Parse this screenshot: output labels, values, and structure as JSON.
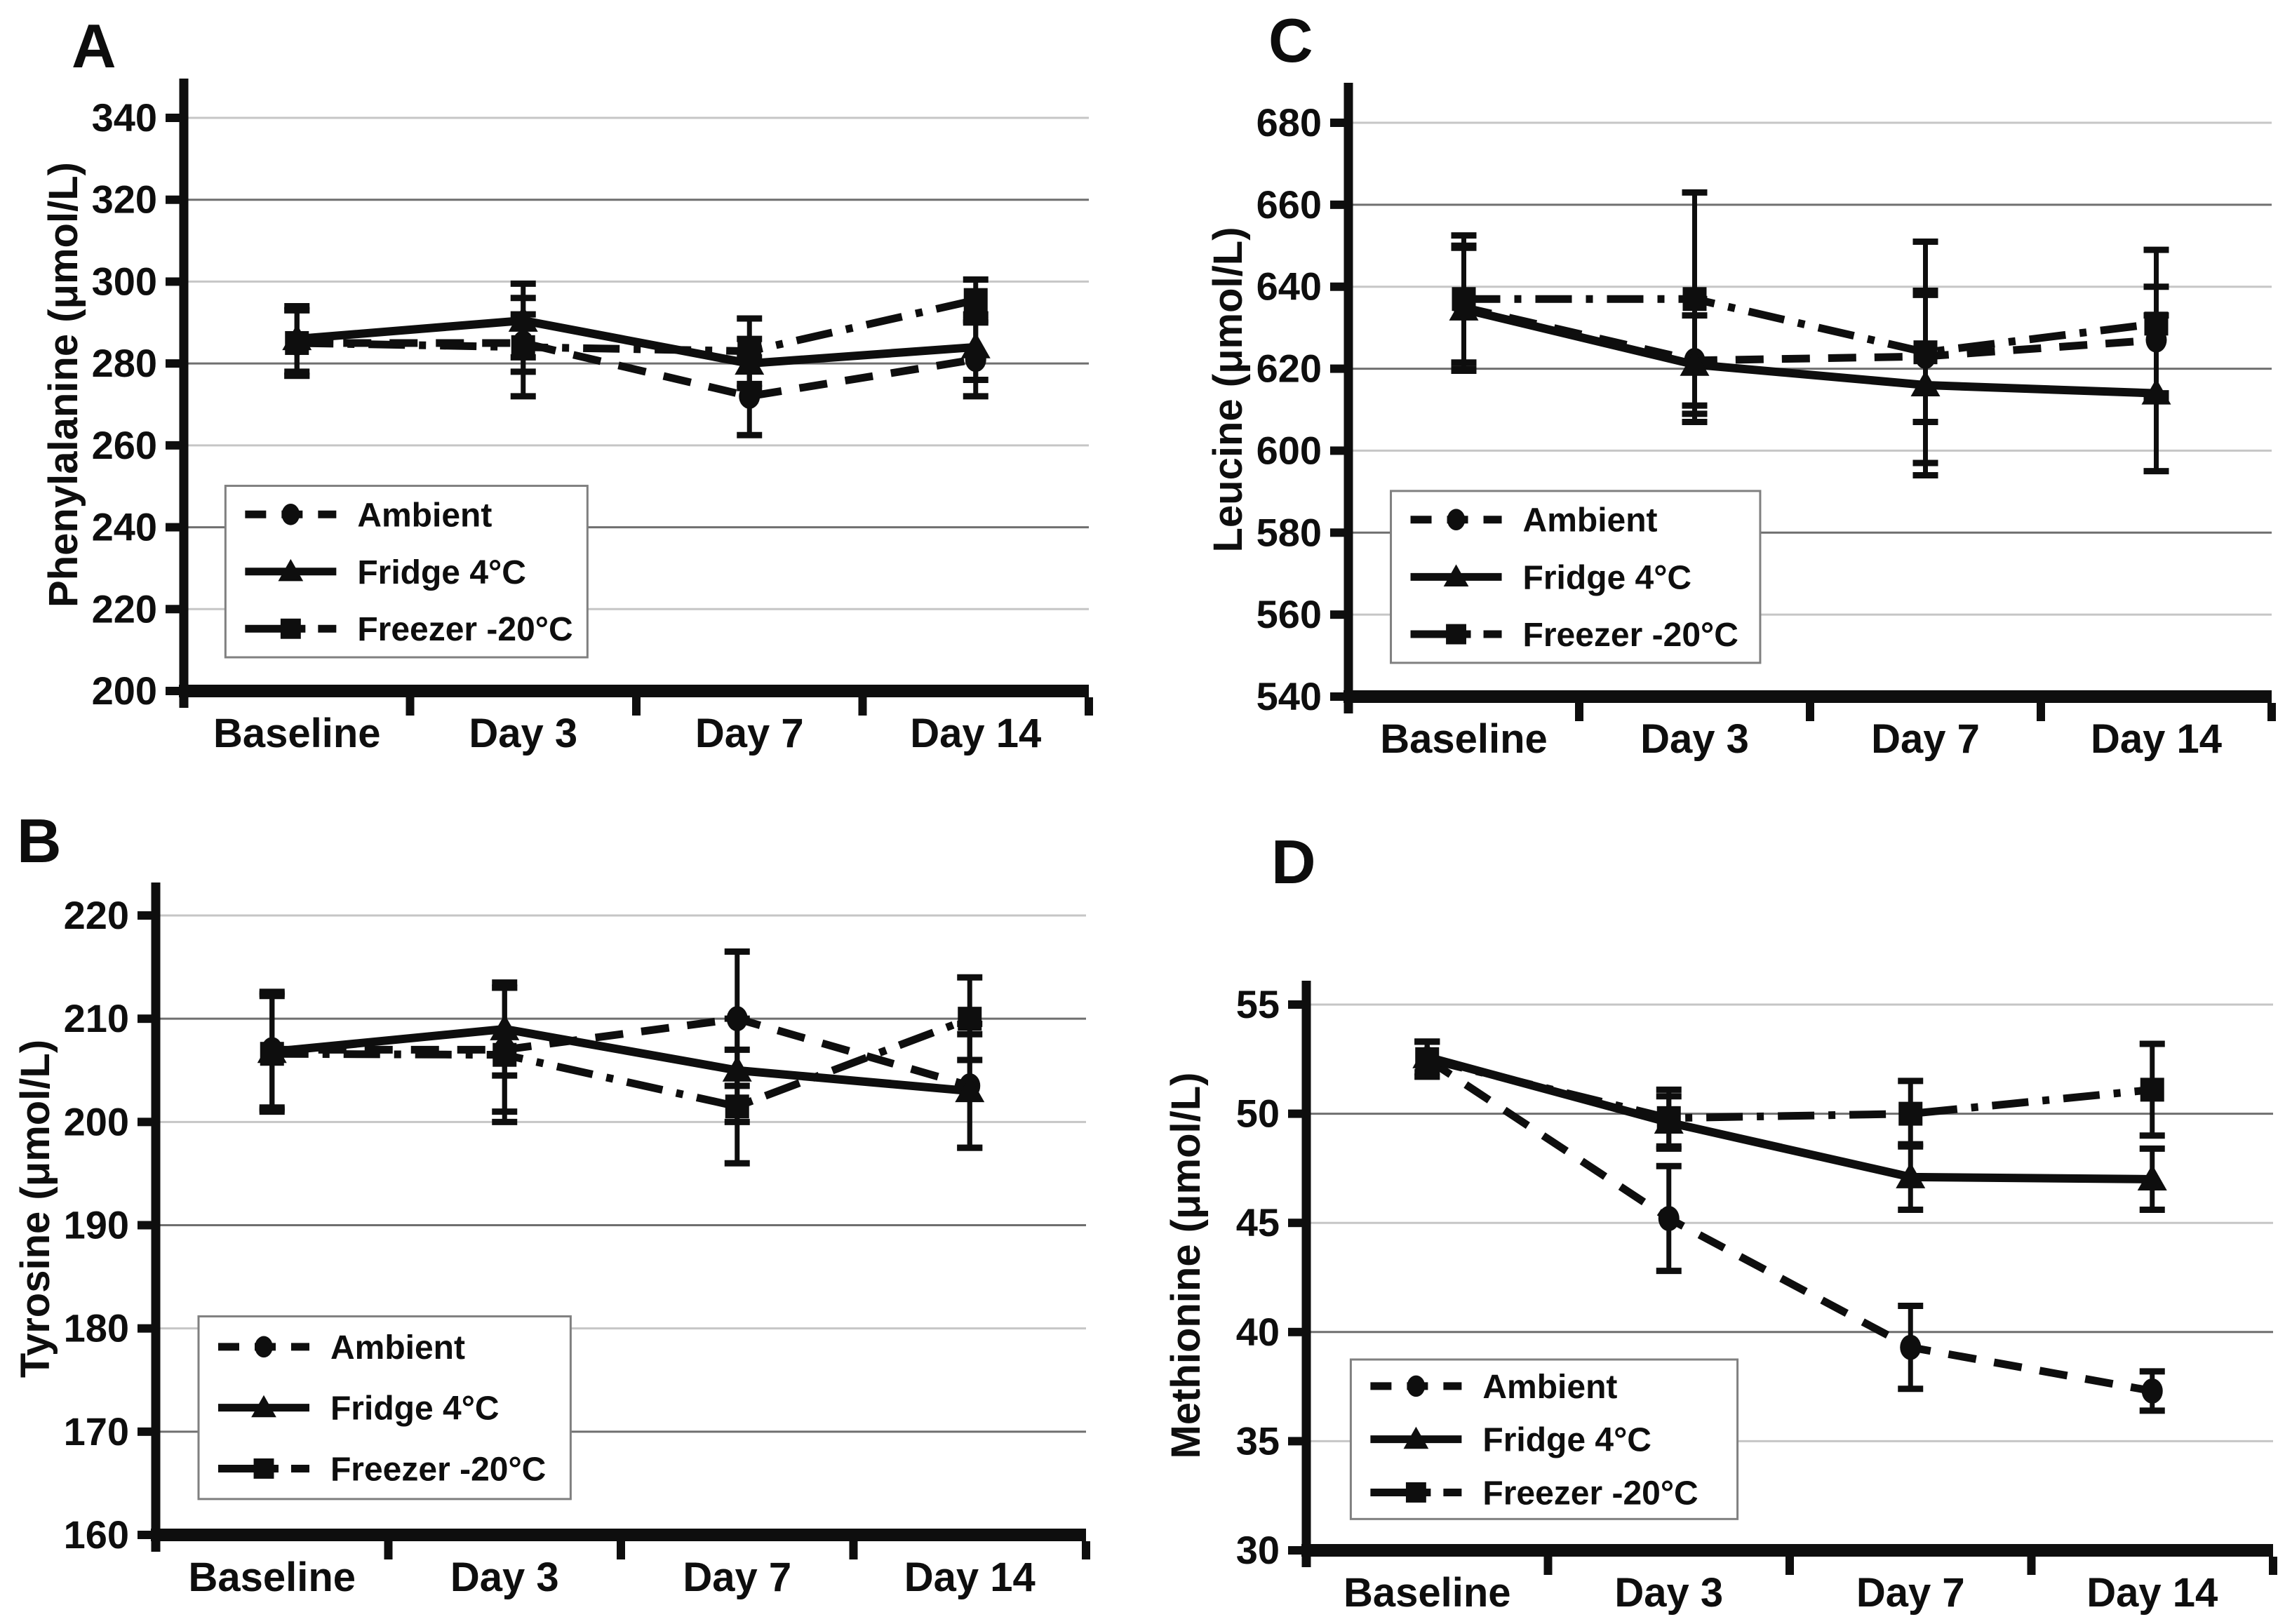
{
  "colors": {
    "ink": "#0e0e0e",
    "grid_light": "#c6c6c6",
    "grid_dark": "#6f6f6f",
    "legend_border": "#808080",
    "background": "#ffffff"
  },
  "chart_data": [
    {
      "panel": "A",
      "type": "line",
      "title": "",
      "xlabel": "",
      "ylabel": "Phenylalanine (μmol/L)",
      "ylim": [
        200,
        340
      ],
      "ytick_step": 20,
      "yticks": [
        200,
        220,
        240,
        260,
        280,
        300,
        320,
        340
      ],
      "categories": [
        "Baseline",
        "Day 3",
        "Day 7",
        "Day 14"
      ],
      "grid": true,
      "legend_position": "lower-left",
      "legend_labels": [
        "Ambient",
        "Fridge 4°C",
        "Freezer -20°C"
      ],
      "series": [
        {
          "name": "Ambient",
          "line_style": "dashed",
          "marker": "circle",
          "values": [
            285,
            285,
            272,
            281
          ],
          "errors": [
            8,
            7,
            9.5,
            9
          ]
        },
        {
          "name": "Fridge 4°C",
          "line_style": "solid",
          "marker": "triangle",
          "values": [
            286,
            290.5,
            280,
            284
          ],
          "errors": [
            8,
            9,
            6,
            8
          ]
        },
        {
          "name": "Freezer -20°C",
          "line_style": "dashdot",
          "marker": "square",
          "values": [
            285,
            284,
            283,
            295.5
          ],
          "errors": [
            8,
            12,
            8,
            5
          ]
        }
      ]
    },
    {
      "panel": "B",
      "type": "line",
      "title": "",
      "xlabel": "",
      "ylabel": "Tyrosine (μmol/L)",
      "ylim": [
        160,
        220
      ],
      "ytick_step": 10,
      "yticks": [
        160,
        170,
        180,
        190,
        200,
        210,
        220
      ],
      "categories": [
        "Baseline",
        "Day 3",
        "Day 7",
        "Day 14"
      ],
      "grid": true,
      "legend_position": "lower-left",
      "legend_labels": [
        "Ambient",
        "Fridge 4°C",
        "Freezer -20°C"
      ],
      "series": [
        {
          "name": "Ambient",
          "line_style": "dashed",
          "marker": "circle",
          "values": [
            207,
            207,
            210,
            203.5
          ],
          "errors": [
            5.6,
            6,
            6.5,
            6
          ]
        },
        {
          "name": "Fridge 4°C",
          "line_style": "solid",
          "marker": "triangle",
          "values": [
            206.8,
            209,
            205,
            203
          ],
          "errors": [
            5.6,
            4.5,
            5,
            5.5
          ]
        },
        {
          "name": "Freezer -20°C",
          "line_style": "dashdot",
          "marker": "square",
          "values": [
            206.6,
            206.5,
            201.5,
            210
          ],
          "errors": [
            5.6,
            6.5,
            5.5,
            4
          ]
        }
      ]
    },
    {
      "panel": "C",
      "type": "line",
      "title": "",
      "xlabel": "",
      "ylabel": "Leucine (μmol/L)",
      "ylim": [
        540,
        680
      ],
      "ytick_step": 20,
      "yticks": [
        540,
        560,
        580,
        600,
        620,
        640,
        660,
        680
      ],
      "categories": [
        "Baseline",
        "Day 3",
        "Day 7",
        "Day 14"
      ],
      "grid": true,
      "legend_position": "lower-left",
      "legend_labels": [
        "Ambient",
        "Fridge 4°C",
        "Freezer -20°C"
      ],
      "series": [
        {
          "name": "Ambient",
          "line_style": "dashed",
          "marker": "circle",
          "values": [
            635,
            622,
            623,
            627
          ],
          "errors": [
            15,
            15,
            16,
            13
          ]
        },
        {
          "name": "Fridge 4°C",
          "line_style": "solid",
          "marker": "triangle",
          "values": [
            634.5,
            621,
            616,
            614
          ],
          "errors": [
            15,
            12,
            22,
            19
          ]
        },
        {
          "name": "Freezer -20°C",
          "line_style": "dashdot",
          "marker": "square",
          "values": [
            637,
            637,
            624,
            631
          ],
          "errors": [
            15.5,
            26,
            27,
            18
          ]
        }
      ]
    },
    {
      "panel": "D",
      "type": "line",
      "title": "",
      "xlabel": "",
      "ylabel": "Methionine (μmol/L)",
      "ylim": [
        30,
        55
      ],
      "ytick_step": 5,
      "yticks": [
        30,
        35,
        40,
        45,
        50,
        55
      ],
      "categories": [
        "Baseline",
        "Day 3",
        "Day 7",
        "Day 14"
      ],
      "grid": true,
      "legend_position": "lower-left",
      "legend_labels": [
        "Ambient",
        "Fridge 4°C",
        "Freezer -20°C"
      ],
      "series": [
        {
          "name": "Ambient",
          "line_style": "dashed",
          "marker": "circle",
          "values": [
            52.5,
            45.2,
            39.3,
            37.3
          ],
          "errors": [
            0.8,
            2.4,
            1.9,
            0.9
          ]
        },
        {
          "name": "Fridge 4°C",
          "line_style": "solid",
          "marker": "triangle",
          "values": [
            52.6,
            49.6,
            47.1,
            47.0
          ],
          "errors": [
            0.7,
            1.2,
            1.5,
            1.4
          ]
        },
        {
          "name": "Freezer -20°C",
          "line_style": "dashdot",
          "marker": "square",
          "values": [
            52.5,
            49.8,
            50.0,
            51.1
          ],
          "errors": [
            0.8,
            1.3,
            1.5,
            2.1
          ]
        }
      ]
    }
  ]
}
